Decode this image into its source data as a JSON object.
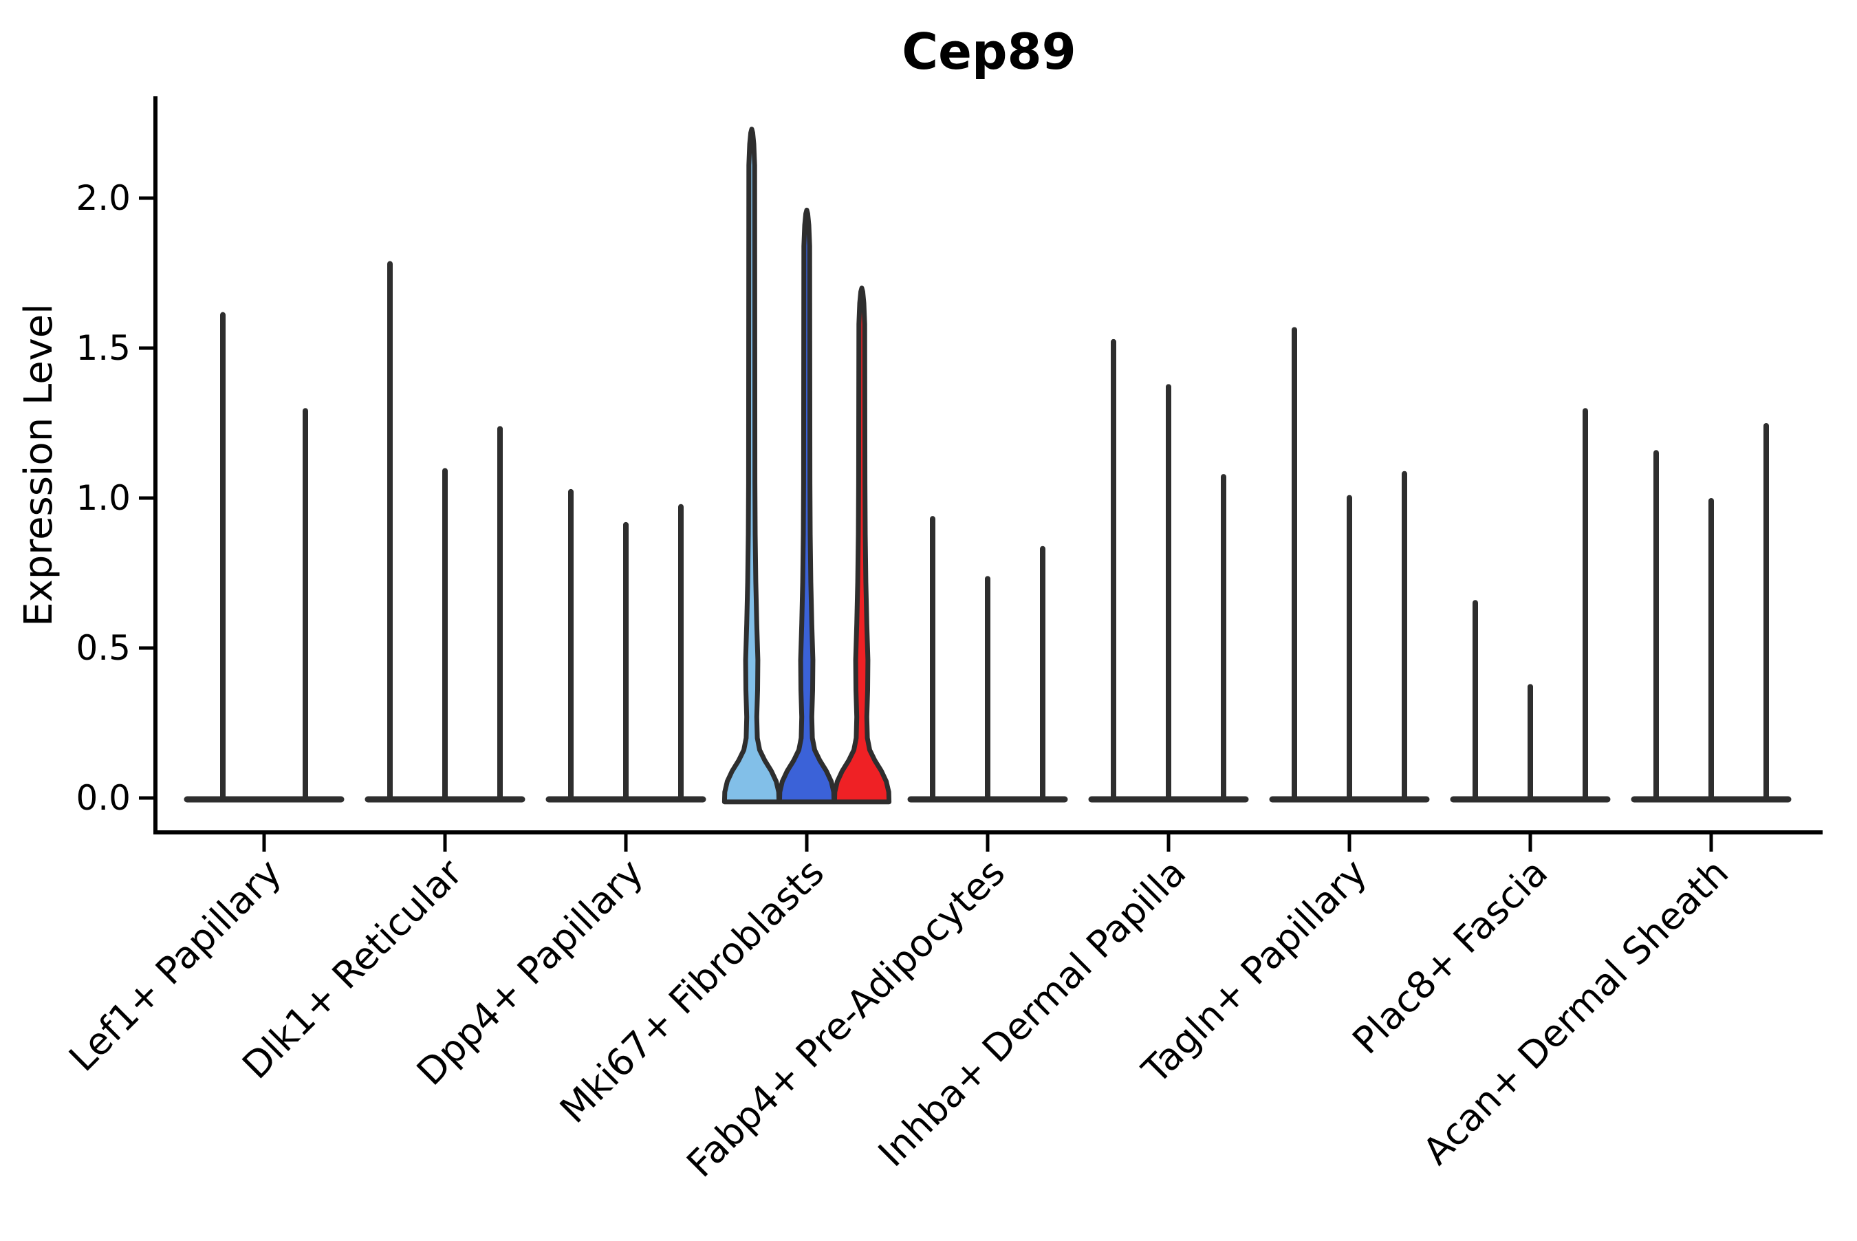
{
  "title": "Cep89",
  "ylabel": "Expression Level",
  "colors": {
    "background": "#FFFFFF",
    "text": "#000000",
    "axis": "#000000",
    "violin_outline": "#2E2E2E",
    "light_blue": "#82BFE8",
    "blue": "#3B62D8",
    "red": "#EF2125"
  },
  "chart_data": {
    "type": "violin",
    "title": "Cep89",
    "xlabel": "",
    "ylabel": "Expression Level",
    "ylim": [
      -0.12,
      2.35
    ],
    "yticks": [
      0.0,
      0.5,
      1.0,
      1.5,
      2.0
    ],
    "ytick_labels": [
      "0.0",
      "0.5",
      "1.0",
      "1.5",
      "2.0"
    ],
    "grid": false,
    "legend": "none",
    "note": "Split violin plot of Cep89 expression; most violins collapse to a thin spike at 0 with a tall narrow tail whose top is the max expression value. Only the Mki67+ Fibroblasts group is filled with colors; all other violins are unfilled dark outlines.",
    "highlighted_category": "Mki67+ Fibroblasts",
    "categories": [
      "Lef1+ Papillary",
      "Dlk1+ Reticular",
      "Dpp4+ Papillary",
      "Mki67+ Fibroblasts",
      "Fabp4+ Pre-Adipocytes",
      "Inhba+ Dermal Papilla",
      "Tagln+ Papillary",
      "Plac8+ Fascia",
      "Acan+ Dermal Sheath"
    ],
    "series": [
      {
        "category": "Lef1+ Papillary",
        "violins": [
          {
            "max": 1.62,
            "fill": "none"
          },
          {
            "max": 1.3,
            "fill": "none"
          }
        ]
      },
      {
        "category": "Dlk1+ Reticular",
        "violins": [
          {
            "max": 1.79,
            "fill": "none"
          },
          {
            "max": 1.1,
            "fill": "none"
          },
          {
            "max": 1.24,
            "fill": "none"
          }
        ]
      },
      {
        "category": "Dpp4+ Papillary",
        "violins": [
          {
            "max": 1.03,
            "fill": "none"
          },
          {
            "max": 0.92,
            "fill": "none"
          },
          {
            "max": 0.98,
            "fill": "none"
          }
        ]
      },
      {
        "category": "Mki67+ Fibroblasts",
        "violins": [
          {
            "max": 2.23,
            "fill": "#82BFE8"
          },
          {
            "max": 1.96,
            "fill": "#3B62D8"
          },
          {
            "max": 1.7,
            "fill": "#EF2125"
          }
        ]
      },
      {
        "category": "Fabp4+ Pre-Adipocytes",
        "violins": [
          {
            "max": 0.94,
            "fill": "none"
          },
          {
            "max": 0.74,
            "fill": "none"
          },
          {
            "max": 0.84,
            "fill": "none"
          }
        ]
      },
      {
        "category": "Inhba+ Dermal Papilla",
        "violins": [
          {
            "max": 1.53,
            "fill": "none"
          },
          {
            "max": 1.38,
            "fill": "none"
          },
          {
            "max": 1.08,
            "fill": "none"
          }
        ]
      },
      {
        "category": "Tagln+ Papillary",
        "violins": [
          {
            "max": 1.57,
            "fill": "none"
          },
          {
            "max": 1.01,
            "fill": "none"
          },
          {
            "max": 1.09,
            "fill": "none"
          }
        ]
      },
      {
        "category": "Plac8+ Fascia",
        "violins": [
          {
            "max": 0.66,
            "fill": "none"
          },
          {
            "max": 0.38,
            "fill": "none"
          },
          {
            "max": 1.3,
            "fill": "none"
          }
        ]
      },
      {
        "category": "Acan+ Dermal Sheath",
        "violins": [
          {
            "max": 1.16,
            "fill": "none"
          },
          {
            "max": 1.0,
            "fill": "none"
          },
          {
            "max": 1.25,
            "fill": "none"
          }
        ]
      }
    ]
  }
}
